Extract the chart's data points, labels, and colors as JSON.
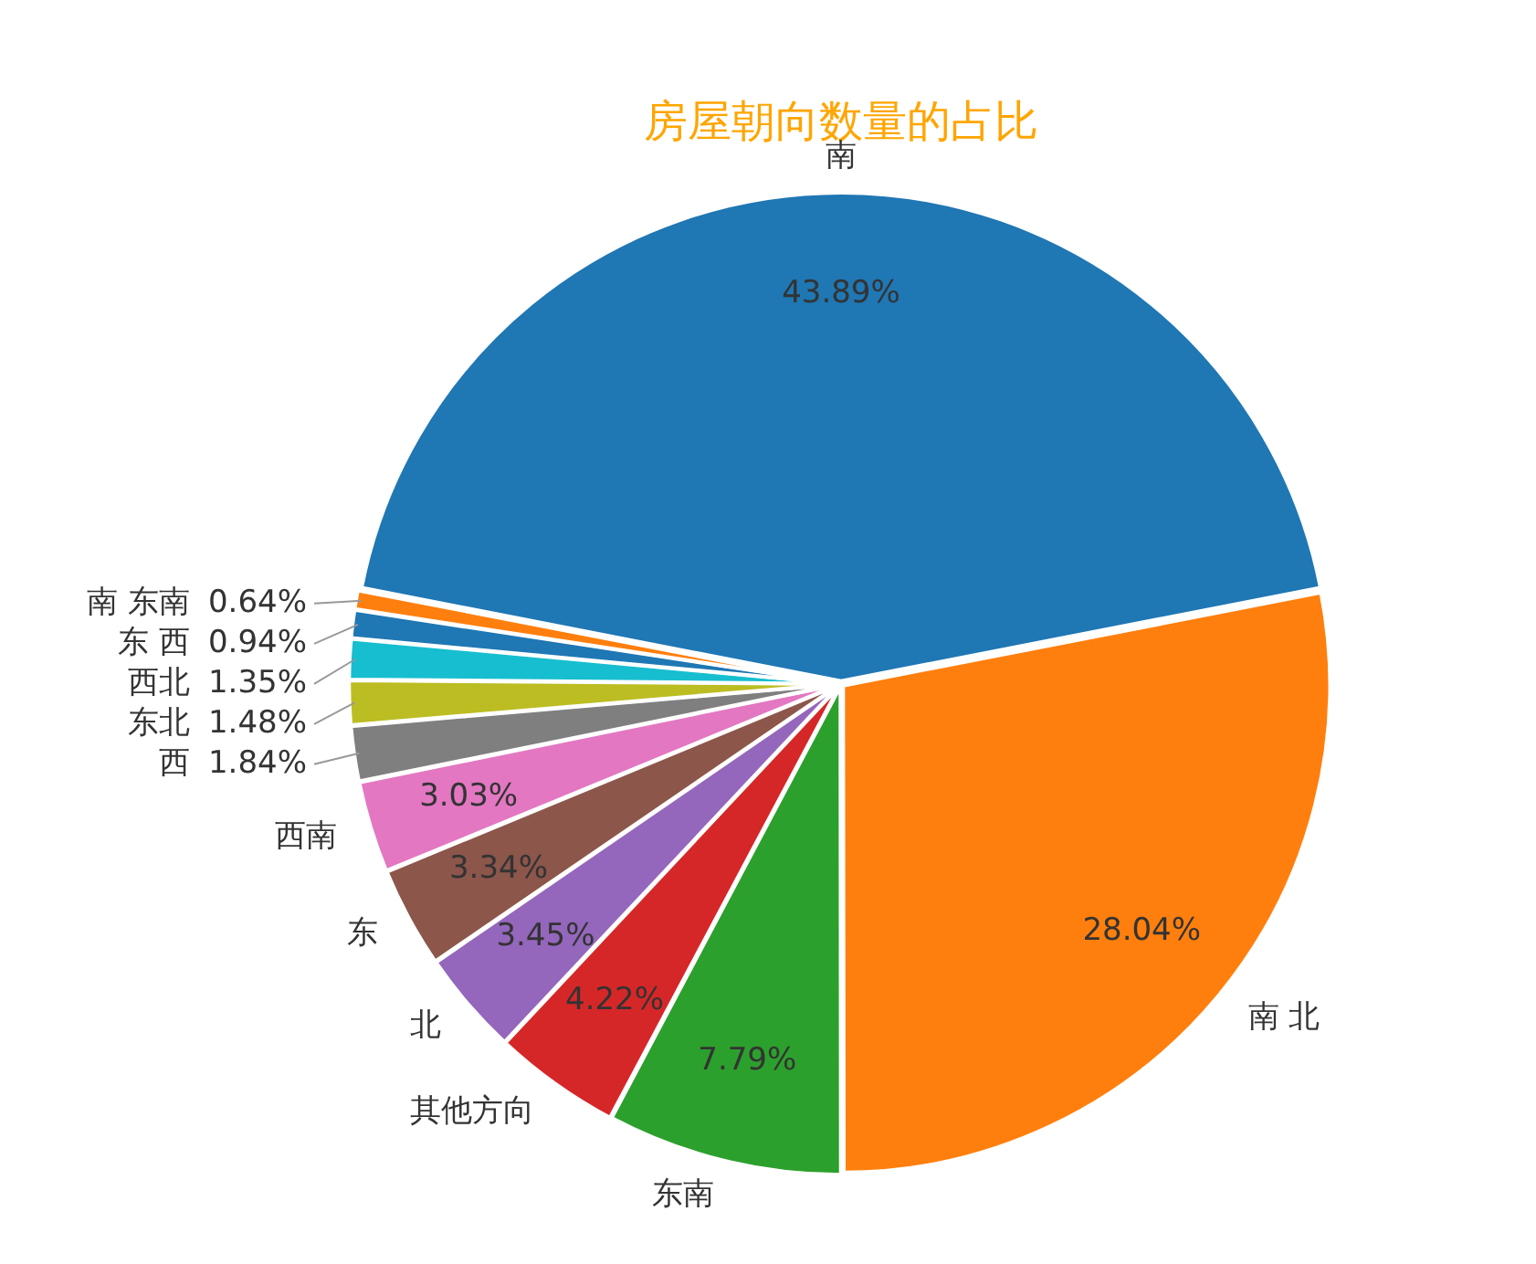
{
  "chart_data": {
    "type": "pie",
    "title": "房屋朝向数量的占比",
    "categories": [
      "南",
      "南 北",
      "东南",
      "其他方向",
      "北",
      "东",
      "西南",
      "西",
      "东北",
      "西北",
      "东 西",
      "南 东南"
    ],
    "values": [
      43.89,
      28.04,
      7.79,
      4.22,
      3.45,
      3.34,
      3.03,
      1.84,
      1.48,
      1.35,
      0.94,
      0.64
    ],
    "colors": [
      "#1f77b4",
      "#ff7f0e",
      "#2ca02c",
      "#d62728",
      "#9467bd",
      "#8c564b",
      "#e377c2",
      "#7f7f7f",
      "#bcbd22",
      "#17becf",
      "#1f77b4",
      "#ff7f0e"
    ],
    "value_labels": [
      "43.89%",
      "28.04%",
      "7.79%",
      "4.22%",
      "3.45%",
      "3.34%",
      "3.03%",
      "1.84%",
      "1.48%",
      "1.35%",
      "0.94%",
      "0.64%"
    ],
    "legend": false
  }
}
